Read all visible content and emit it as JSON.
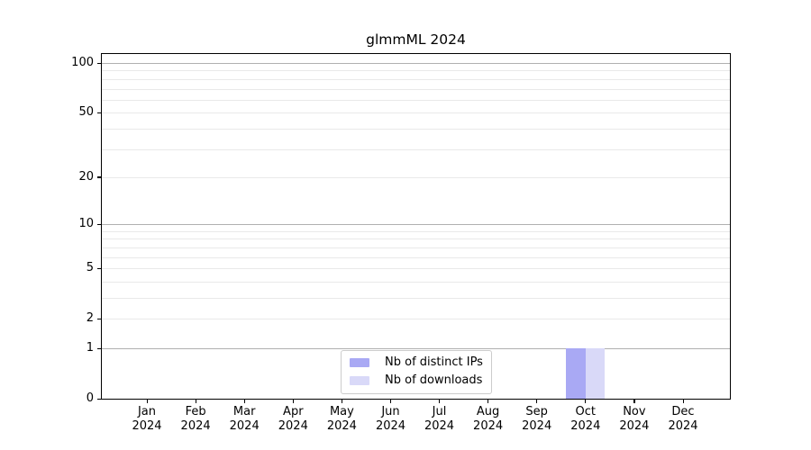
{
  "chart_data": {
    "type": "bar",
    "title": "glmmML 2024",
    "categories": [
      "Jan",
      "Feb",
      "Mar",
      "Apr",
      "May",
      "Jun",
      "Jul",
      "Aug",
      "Sep",
      "Oct",
      "Nov",
      "Dec"
    ],
    "category_year": "2024",
    "series": [
      {
        "name": "Nb of distinct IPs",
        "color": "#a9a9f4",
        "values": [
          0,
          0,
          0,
          0,
          0,
          0,
          0,
          0,
          0,
          1,
          0,
          0
        ]
      },
      {
        "name": "Nb of downloads",
        "color": "#d9d9f8",
        "values": [
          0,
          0,
          0,
          0,
          0,
          0,
          0,
          0,
          0,
          1,
          0,
          0
        ]
      }
    ],
    "yscale": "log1p",
    "ylim": [
      0,
      113
    ],
    "yticks": [
      {
        "value": 0,
        "label": "0"
      },
      {
        "value": 1,
        "label": "1"
      },
      {
        "value": 2,
        "label": "2"
      },
      {
        "value": 5,
        "label": "5"
      },
      {
        "value": 10,
        "label": "10"
      },
      {
        "value": 20,
        "label": "20"
      },
      {
        "value": 50,
        "label": "50"
      },
      {
        "value": 100,
        "label": "100"
      }
    ],
    "grid": {
      "decade": [
        1,
        10,
        100
      ],
      "minor": [
        2,
        3,
        4,
        5,
        6,
        7,
        8,
        9,
        20,
        30,
        40,
        50,
        60,
        70,
        80,
        90
      ]
    },
    "legend_position": "bottom-center",
    "colors": {
      "decade_grid": "#b0b0b0",
      "minor_grid": "#e9e9e9",
      "axis": "#000000",
      "background": "#ffffff"
    }
  }
}
